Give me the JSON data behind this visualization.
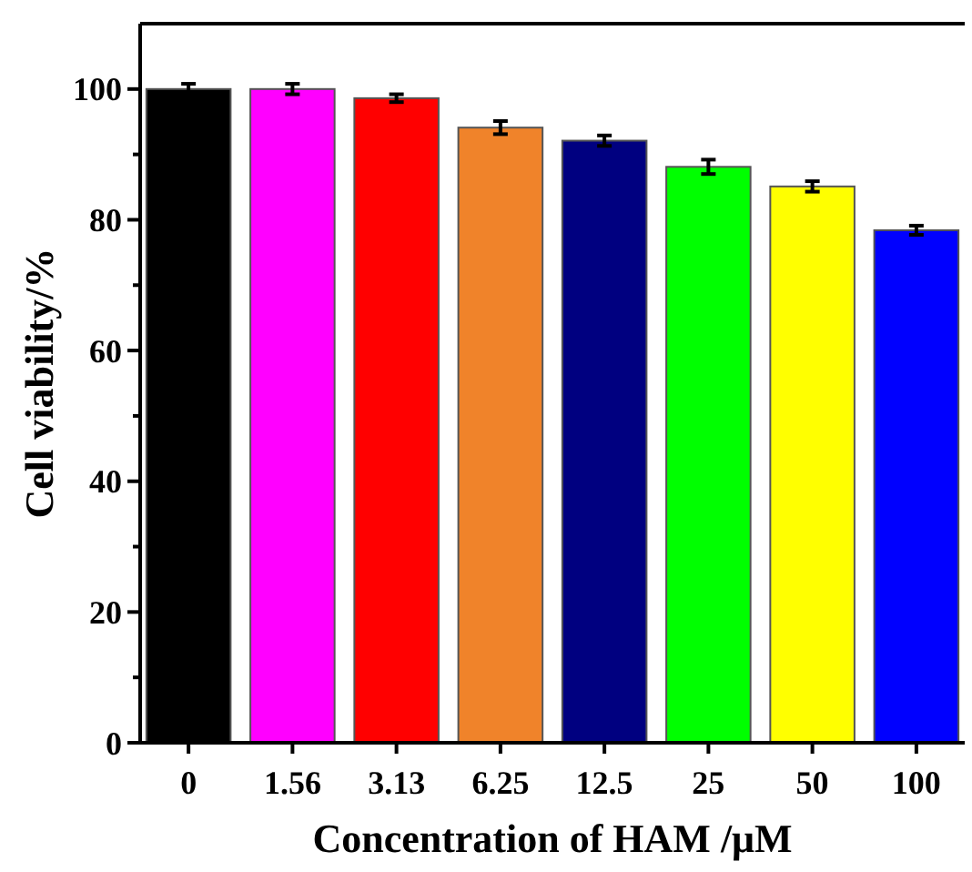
{
  "chart_data": {
    "type": "bar",
    "xlabel": "Concentration of HAM /μM",
    "ylabel": "Cell viability/%",
    "categories": [
      "0",
      "1.56",
      "3.13",
      "6.25",
      "12.5",
      "25",
      "50",
      "100"
    ],
    "values": [
      100,
      100,
      98.6,
      94.1,
      92.1,
      88.1,
      85.1,
      78.4
    ],
    "errors": [
      0.8,
      0.8,
      0.6,
      1.0,
      0.8,
      1.1,
      0.8,
      0.7
    ],
    "colors": [
      "#000000",
      "#ff00ff",
      "#ff0000",
      "#f0832a",
      "#000080",
      "#00ff00",
      "#ffff00",
      "#0000ff"
    ],
    "ylim": [
      0,
      110
    ],
    "yticks": [
      0,
      {
        "value": 10,
        "label": null
      },
      20,
      {
        "value": 30,
        "label": null
      },
      40,
      {
        "value": 50,
        "label": null
      },
      60,
      {
        "value": 70,
        "label": null
      },
      80,
      {
        "value": 90,
        "label": null
      },
      100
    ],
    "grid": false
  }
}
